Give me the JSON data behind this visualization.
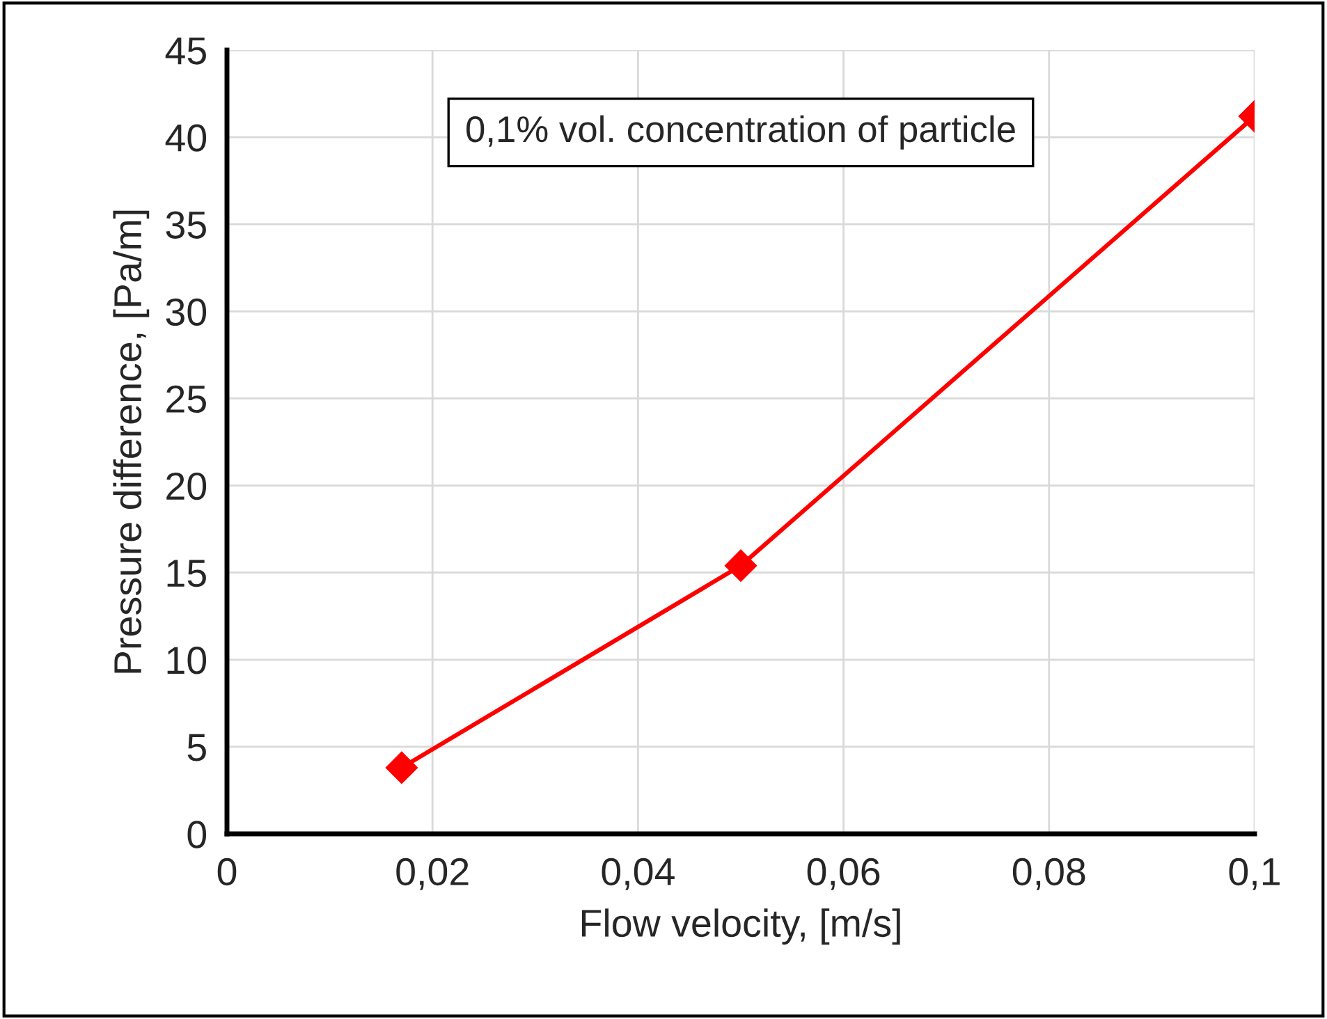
{
  "chart_data": {
    "type": "line",
    "xlabel": "Flow velocity, [m/s]",
    "ylabel": "Pressure difference, [Pa/m]",
    "annotations": [
      "0,1% vol. concentration of particle"
    ],
    "x": [
      0.017,
      0.05,
      0.1
    ],
    "series": [
      {
        "color": "#ff0000",
        "values": [
          3.8,
          15.4,
          41.2
        ]
      }
    ],
    "xlim": [
      0,
      0.1
    ],
    "ylim": [
      0,
      45
    ],
    "xticks": [
      0,
      {
        "value": 0.02,
        "label": "0,02"
      },
      {
        "value": 0.04,
        "label": "0,04"
      },
      {
        "value": 0.06,
        "label": "0,06"
      },
      {
        "value": 0.08,
        "label": "0,08"
      },
      {
        "value": 0.1,
        "label": "0,1"
      }
    ],
    "yticks": [
      0,
      5,
      10,
      15,
      20,
      25,
      30,
      35,
      40,
      45
    ],
    "grid": true,
    "marker": "diamond",
    "line_style": "solid",
    "legend": false
  }
}
